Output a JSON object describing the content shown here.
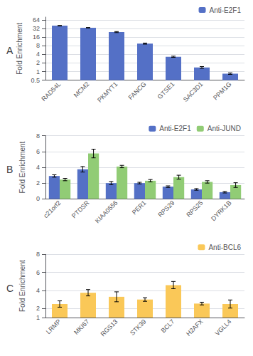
{
  "chart_data": [
    {
      "type": "bar",
      "title": "A",
      "ylabel": "Fold Enrichment",
      "categories": [
        "RAD54L",
        "MCM2",
        "PKMYT1",
        "FANCG",
        "GTSE1",
        "SAC3D1",
        "PPM1G"
      ],
      "series": [
        {
          "name": "Anti-E2F1",
          "color": "#5470c6",
          "values": [
            40.0,
            34.0,
            24.0,
            9.5,
            3.3,
            1.4,
            0.85
          ],
          "errors": [
            0.8,
            0.6,
            1.0,
            0.4,
            0.15,
            0.1,
            0.05
          ]
        }
      ],
      "log": "y",
      "ylim": [
        0.5,
        80
      ],
      "yticks": [
        0.5,
        1,
        2,
        4,
        8,
        16,
        32,
        64
      ],
      "grid": true,
      "legend": "upper right"
    },
    {
      "type": "bar",
      "title": "B",
      "ylabel": "Fold Enrichment",
      "categories": [
        "c21orf2",
        "PTDSR",
        "KIAA0556",
        "PER1",
        "RPS29",
        "RPS25",
        "DYRK1B"
      ],
      "series": [
        {
          "name": "Anti-E2F1",
          "color": "#5470c6",
          "values": [
            2.9,
            3.75,
            2.0,
            2.0,
            1.55,
            1.2,
            0.85
          ],
          "errors": [
            0.15,
            0.35,
            0.2,
            0.1,
            0.1,
            0.1,
            0.1
          ]
        },
        {
          "name": "Anti-JUND",
          "color": "#91cc75",
          "values": [
            2.45,
            5.75,
            4.1,
            2.3,
            2.75,
            2.15,
            1.75
          ],
          "errors": [
            0.15,
            0.55,
            0.15,
            0.15,
            0.25,
            0.15,
            0.3
          ]
        }
      ],
      "ylim": [
        0,
        8
      ],
      "yticks": [
        0,
        2,
        4,
        6,
        8
      ],
      "grid": true,
      "legend": "upper right"
    },
    {
      "type": "bar",
      "title": "C",
      "ylabel": "Fold Enrichment",
      "categories": [
        "LRMP",
        "MKI67",
        "RGS13",
        "STK39",
        "BCL7",
        "H2AFX",
        "VGLL4"
      ],
      "series": [
        {
          "name": "Anti-BCL6",
          "color": "#fac858",
          "values": [
            2.5,
            3.75,
            3.3,
            3.0,
            4.6,
            2.55,
            2.5
          ],
          "errors": [
            0.35,
            0.35,
            0.55,
            0.2,
            0.4,
            0.15,
            0.45
          ]
        }
      ],
      "ylim": [
        1,
        8
      ],
      "yticks": [
        1,
        2,
        4,
        6,
        8
      ],
      "grid": true,
      "legend": "upper right"
    }
  ]
}
